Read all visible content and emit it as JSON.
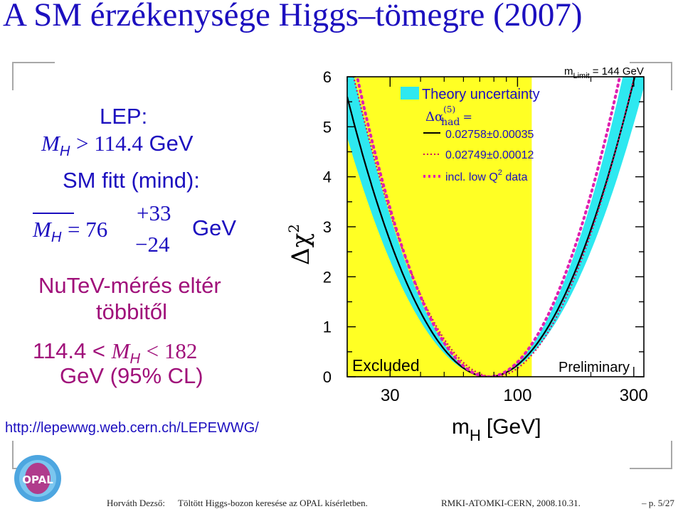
{
  "title": "A SM érzékenysége Higgs–tömegre (2007)",
  "left_panel": {
    "lep_label": "LEP:",
    "lep_limit_var": "M",
    "lep_limit_sub": "H",
    "lep_limit_rel": "> 114.4",
    "lep_limit_unit": "GeV",
    "smfit_label": "SM fitt (mind):",
    "smfit_var": "M",
    "smfit_sub": "H",
    "smfit_eq": "= 76",
    "smfit_plus": "+33",
    "smfit_minus": "−24",
    "smfit_unit": "GeV",
    "nutev_line1": "NuTeV-mérés eltér",
    "nutev_line2": "többitől",
    "range_lo": "114.4 <",
    "range_var": "M",
    "range_sub": "H",
    "range_hi": "< 182",
    "range_unit": "GeV (95% CL)"
  },
  "url": "http://lepewwg.web.cern.ch/LEPEWWG/",
  "footer": {
    "author": "Horváth Dezső:",
    "talk": "Töltött Higgs-bozon keresése az OPAL kísérletben.",
    "venue": "RMKI-ATOMKI-CERN, 2008.10.31.",
    "page": "– p. 5/27"
  },
  "logo_text": "OPAL",
  "chart_data": {
    "type": "line",
    "xlabel_main": "m",
    "xlabel_sub": "H",
    "xlabel_unit": "[GeV]",
    "ylabel": "Δχ",
    "ylabel_sup": "2",
    "xscale": "log",
    "xlim": [
      20,
      330
    ],
    "ylim": [
      0,
      6
    ],
    "xticks": [
      "30",
      "100",
      "300"
    ],
    "yticks": [
      "0",
      "1",
      "2",
      "3",
      "4",
      "5",
      "6"
    ],
    "excluded_region": {
      "x_max": 114.4,
      "label": "Excluded",
      "color": "#ffff24"
    },
    "mlimit_text": "m",
    "mlimit_sub": "Limit",
    "mlimit_value": "= 144 GeV",
    "preliminary_label": "Preliminary",
    "legend": {
      "theory_label": "Theory uncertainty",
      "alpha_label": "Δα",
      "alpha_sup": "(5)",
      "alpha_sub": "had",
      "alpha_eq": "=",
      "entries": [
        {
          "label": "0.02758±0.00035",
          "style": "solid"
        },
        {
          "label": "0.02749±0.00012",
          "style": "dotted"
        },
        {
          "label": "incl. low Q",
          "sup": "2",
          "suffix": " data",
          "style": "dotted-bold"
        }
      ]
    },
    "series": [
      {
        "name": "0.02758±0.00035",
        "min_x": 76,
        "min_y": 0,
        "width": 0.245,
        "band": 0.02,
        "color": "#000000"
      },
      {
        "name": "0.02749±0.00012",
        "min_x": 80,
        "min_y": 0,
        "width": 0.235,
        "color": "#cc1060"
      },
      {
        "name": "incl. low Q2 data",
        "min_x": 76,
        "min_y": 0,
        "width": 0.22,
        "color": "#e020b0"
      }
    ],
    "colors": {
      "band": "#2ee8f0",
      "excluded": "#ffff24",
      "axis": "#000000"
    }
  }
}
